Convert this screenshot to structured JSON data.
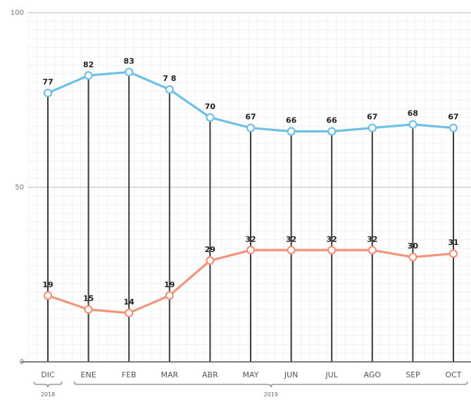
{
  "chart_data": {
    "type": "line",
    "categories": [
      "DIC",
      "ENE",
      "FEB",
      "MAR",
      "ABR",
      "MAY",
      "JUN",
      "JUL",
      "AGO",
      "SEP",
      "OCT"
    ],
    "year_groups": [
      {
        "label": "2018",
        "from": 0,
        "to": 0
      },
      {
        "label": "2019",
        "from": 1,
        "to": 10
      }
    ],
    "series": [
      {
        "values": [
          77,
          82,
          83,
          78,
          70,
          67,
          66,
          66,
          67,
          68,
          67
        ],
        "color": "#6fbfe6"
      },
      {
        "values": [
          19,
          15,
          14,
          19,
          29,
          32,
          32,
          32,
          32,
          30,
          31
        ],
        "color": "#f2937c"
      }
    ],
    "data_labels": [
      [
        "77",
        "82",
        "83",
        "7 8",
        "70",
        "67",
        "66",
        "66",
        "67",
        "68",
        "67"
      ],
      [
        "19",
        "15",
        "14",
        "19",
        "29",
        "32",
        "32",
        "32",
        "32",
        "30",
        "31"
      ]
    ],
    "yticks": [
      "100",
      "50",
      "0"
    ],
    "ylim": [
      0,
      100
    ],
    "grid": true,
    "title": "",
    "xlabel": "",
    "ylabel": ""
  }
}
